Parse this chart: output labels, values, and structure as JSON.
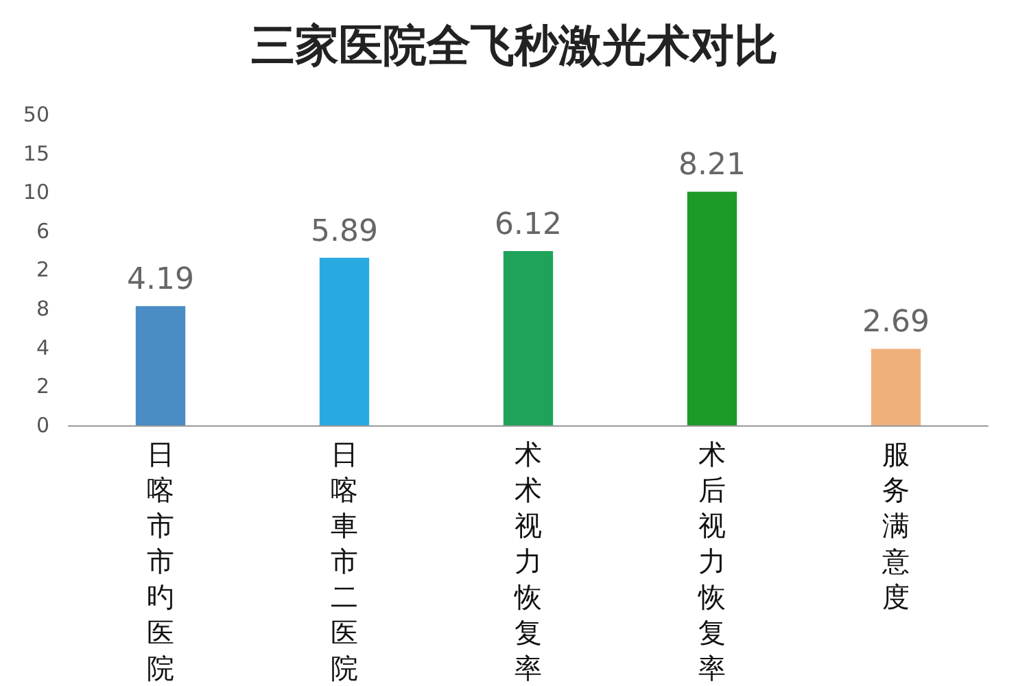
{
  "chart_data": {
    "type": "bar",
    "title": "三家医院全飞秒激光术对比",
    "categories": [
      "日喀市市旳医院",
      "日喀車市二医院",
      "术术视力恢复率",
      "术后视力恢复率",
      "服务满意度"
    ],
    "values": [
      4.19,
      5.89,
      6.12,
      8.21,
      2.69
    ],
    "colors": [
      "#4a8cc4",
      "#29a9e1",
      "#1fa35a",
      "#1e9a28",
      "#f0b07c"
    ],
    "data_labels": true,
    "annotations": [
      "0",
      "2",
      "4",
      "8",
      "2",
      "6",
      "10",
      "15",
      "50"
    ],
    "grid": false
  }
}
